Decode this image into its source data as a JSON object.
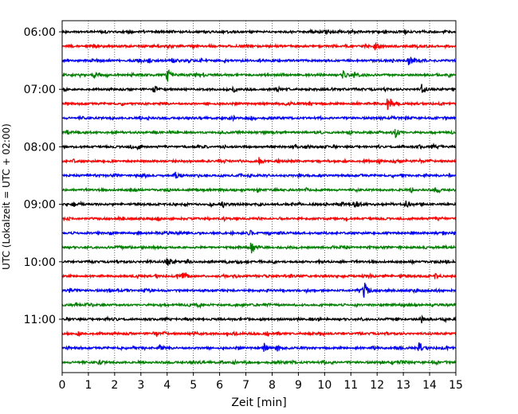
{
  "chart_data": {
    "type": "line",
    "description_kind": "helicorder seismogram",
    "xlabel": "Zeit  [min]",
    "ylabel": "UTC (Lokalzeit = UTC + 02:00)",
    "xlim": [
      0,
      15
    ],
    "x_ticks": [
      "0",
      "1",
      "2",
      "3",
      "4",
      "5",
      "6",
      "7",
      "8",
      "9",
      "10",
      "11",
      "12",
      "13",
      "14",
      "15"
    ],
    "y_tick_labels": [
      "06:00",
      "07:00",
      "08:00",
      "09:00",
      "10:00",
      "11:00"
    ],
    "grid": "vertical dotted at each minute",
    "trace_colors": [
      "#000000",
      "#ff0000",
      "#0000ff",
      "#008000"
    ],
    "traces": [
      {
        "start": "06:00",
        "color": "#000000",
        "events": [
          {
            "t": 10.0,
            "amp": 0.3
          }
        ]
      },
      {
        "start": "06:15",
        "color": "#ff0000",
        "events": [
          {
            "t": 11.9,
            "amp": 0.8
          }
        ]
      },
      {
        "start": "06:30",
        "color": "#0000ff",
        "events": [
          {
            "t": 3.3,
            "amp": 0.4
          },
          {
            "t": 4.2,
            "amp": 0.4
          },
          {
            "t": 13.2,
            "amp": 1.0
          }
        ]
      },
      {
        "start": "06:45",
        "color": "#008000",
        "events": [
          {
            "t": 1.2,
            "amp": 0.4
          },
          {
            "t": 4.0,
            "amp": 1.2
          },
          {
            "t": 10.7,
            "amp": 0.9
          },
          {
            "t": 11.1,
            "amp": 0.6
          }
        ]
      },
      {
        "start": "07:00",
        "color": "#000000",
        "events": [
          {
            "t": 13.7,
            "amp": 0.9
          }
        ]
      },
      {
        "start": "07:15",
        "color": "#ff0000",
        "events": [
          {
            "t": 12.4,
            "amp": 1.0
          }
        ]
      },
      {
        "start": "07:30",
        "color": "#0000ff",
        "events": [
          {
            "t": 7.2,
            "amp": 0.3
          }
        ]
      },
      {
        "start": "07:45",
        "color": "#008000",
        "events": [
          {
            "t": 12.7,
            "amp": 0.9
          }
        ]
      },
      {
        "start": "08:00",
        "color": "#000000",
        "events": [
          {
            "t": 14.1,
            "amp": 0.4
          }
        ]
      },
      {
        "start": "08:15",
        "color": "#ff0000",
        "events": [
          {
            "t": 7.5,
            "amp": 0.6
          }
        ]
      },
      {
        "start": "08:30",
        "color": "#0000ff",
        "events": [
          {
            "t": 4.3,
            "amp": 0.6
          }
        ]
      },
      {
        "start": "08:45",
        "color": "#008000",
        "events": [
          {
            "t": 14.2,
            "amp": 0.3
          }
        ]
      },
      {
        "start": "09:00",
        "color": "#000000",
        "events": [
          {
            "t": 6.1,
            "amp": 0.7
          },
          {
            "t": 11.1,
            "amp": 0.6
          },
          {
            "t": 13.1,
            "amp": 0.5
          }
        ]
      },
      {
        "start": "09:15",
        "color": "#ff0000",
        "events": []
      },
      {
        "start": "09:30",
        "color": "#0000ff",
        "events": [
          {
            "t": 12.3,
            "amp": 0.3
          }
        ]
      },
      {
        "start": "09:45",
        "color": "#008000",
        "events": [
          {
            "t": 7.2,
            "amp": 1.0
          }
        ]
      },
      {
        "start": "10:00",
        "color": "#000000",
        "events": [
          {
            "t": 4.0,
            "amp": 1.0
          },
          {
            "t": 9.8,
            "amp": 0.3
          }
        ]
      },
      {
        "start": "10:15",
        "color": "#ff0000",
        "events": [
          {
            "t": 4.6,
            "amp": 0.5
          },
          {
            "t": 14.2,
            "amp": 0.4
          }
        ]
      },
      {
        "start": "10:30",
        "color": "#0000ff",
        "events": [
          {
            "t": 0.3,
            "amp": 0.4
          },
          {
            "t": 11.5,
            "amp": 1.7
          }
        ]
      },
      {
        "start": "10:45",
        "color": "#008000",
        "events": [
          {
            "t": 5.1,
            "amp": 0.3
          }
        ]
      },
      {
        "start": "11:00",
        "color": "#000000",
        "events": [
          {
            "t": 13.7,
            "amp": 0.5
          }
        ]
      },
      {
        "start": "11:15",
        "color": "#ff0000",
        "events": [
          {
            "t": 0.6,
            "amp": 0.4
          },
          {
            "t": 5.0,
            "amp": 0.4
          }
        ]
      },
      {
        "start": "11:30",
        "color": "#0000ff",
        "events": [
          {
            "t": 3.7,
            "amp": 0.7
          },
          {
            "t": 7.7,
            "amp": 0.7
          },
          {
            "t": 8.2,
            "amp": 0.4
          },
          {
            "t": 13.6,
            "amp": 1.1
          }
        ]
      },
      {
        "start": "11:45",
        "color": "#008000",
        "events": [
          {
            "t": 1.4,
            "amp": 0.4
          },
          {
            "t": 13.0,
            "amp": 0.4
          }
        ]
      }
    ]
  }
}
